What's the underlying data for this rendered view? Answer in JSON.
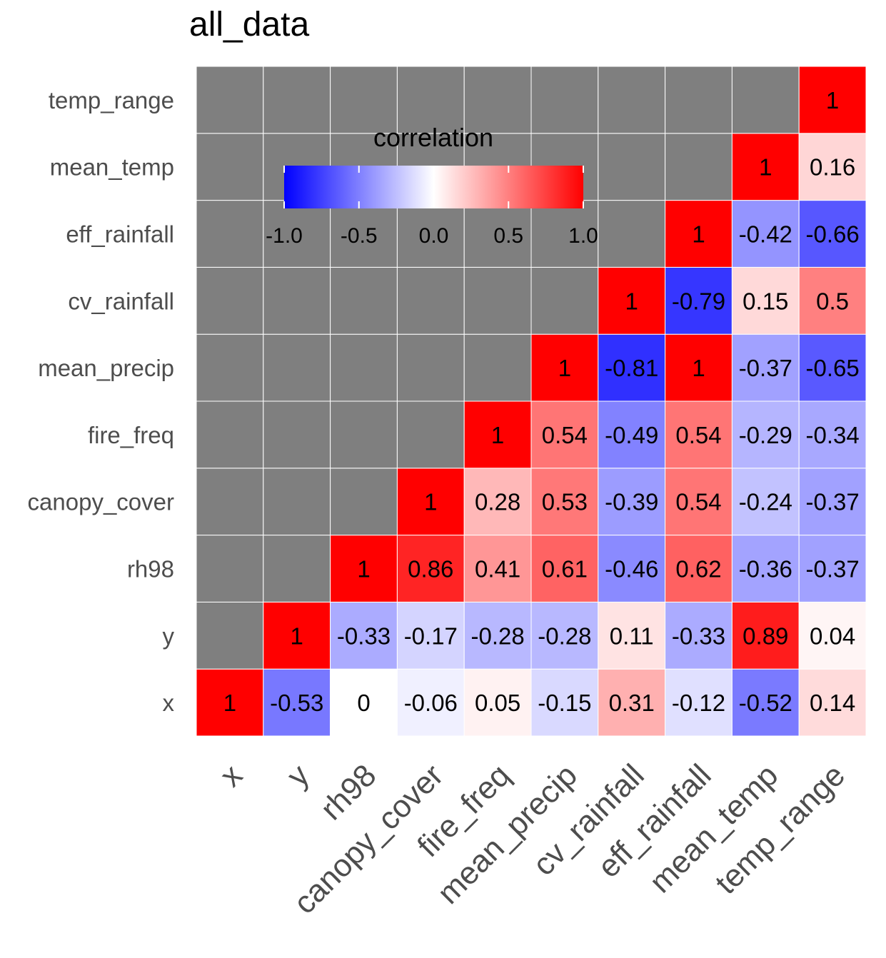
{
  "chart_data": {
    "type": "heatmap",
    "title": "all_data",
    "variables": [
      "x",
      "y",
      "rh98",
      "canopy_cover",
      "fire_freq",
      "mean_precip",
      "cv_rainfall",
      "eff_rainfall",
      "mean_temp",
      "temp_range"
    ],
    "matrix": [
      [
        1,
        -0.53,
        0,
        -0.06,
        0.05,
        -0.15,
        0.31,
        -0.12,
        -0.52,
        0.14
      ],
      [
        null,
        1,
        -0.33,
        -0.17,
        -0.28,
        -0.28,
        0.11,
        -0.33,
        0.89,
        0.04
      ],
      [
        null,
        null,
        1,
        0.86,
        0.41,
        0.61,
        -0.46,
        0.62,
        -0.36,
        -0.37
      ],
      [
        null,
        null,
        null,
        1,
        0.28,
        0.53,
        -0.39,
        0.54,
        -0.24,
        -0.37
      ],
      [
        null,
        null,
        null,
        null,
        1,
        0.54,
        -0.49,
        0.54,
        -0.29,
        -0.34
      ],
      [
        null,
        null,
        null,
        null,
        null,
        1,
        -0.81,
        1,
        -0.37,
        -0.65
      ],
      [
        null,
        null,
        null,
        null,
        null,
        null,
        1,
        -0.79,
        0.15,
        0.5
      ],
      [
        null,
        null,
        null,
        null,
        null,
        null,
        null,
        1,
        -0.42,
        -0.66
      ],
      [
        null,
        null,
        null,
        null,
        null,
        null,
        null,
        null,
        1,
        0.16
      ],
      [
        null,
        null,
        null,
        null,
        null,
        null,
        null,
        null,
        null,
        1
      ]
    ],
    "legend": {
      "title": "correlation",
      "ticks": [
        "-1.0",
        "-0.5",
        "0.0",
        "0.5",
        "1.0"
      ],
      "tick_values": [
        -1,
        -0.5,
        0,
        0.5,
        1
      ],
      "range": [
        -1,
        1
      ],
      "placement": "inside top-left"
    },
    "colors": {
      "low": "#0000ff",
      "mid": "#ffffff",
      "high": "#ff0000",
      "na": "#7f7f7f",
      "grid": "#ffffff"
    },
    "x_tick_rotation_deg": 45
  }
}
